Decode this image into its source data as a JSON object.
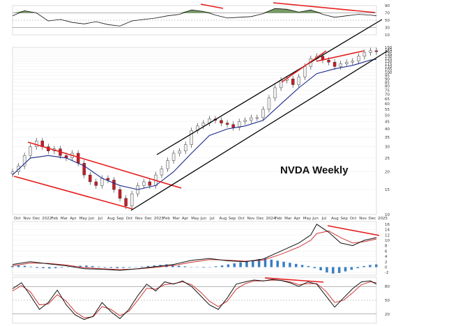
{
  "chart_data": {
    "type": "candlestick",
    "title": "NVDA Weekly",
    "price_scale": "log",
    "x_tick_labels": [
      "Oct",
      "Nov",
      "Dec",
      "2022",
      "Feb",
      "Mar",
      "Apr",
      "May",
      "Jun",
      "Jul",
      "Aug",
      "Sep",
      "Oct",
      "Nov",
      "Dec",
      "2023",
      "Feb",
      "Mar",
      "Apr",
      "May",
      "Jun",
      "Jul",
      "Aug",
      "Sep",
      "Oct",
      "Nov",
      "Dec",
      "2024",
      "Feb",
      "Mar",
      "Apr",
      "May",
      "Jun",
      "Jul",
      "Aug",
      "Sep",
      "Oct",
      "Nov",
      "Dec",
      "2025"
    ],
    "price_tick_labels": [
      "10",
      "15",
      "20",
      "25",
      "30",
      "35",
      "40",
      "45",
      "50",
      "55",
      "60",
      "65",
      "70",
      "75",
      "80",
      "85",
      "90",
      "95",
      "100",
      "105",
      "110",
      "115",
      "120",
      "125",
      "130",
      "135",
      "140",
      "145",
      "150"
    ],
    "rsi_tick_labels": [
      "90",
      "70",
      "50",
      "30",
      "10"
    ],
    "macd_tick_labels": [
      "16",
      "14",
      "12",
      "10",
      "8",
      "6",
      "4",
      "2",
      "0",
      "-2"
    ],
    "stoch_tick_labels": [
      "80",
      "50",
      "20"
    ],
    "price_series": [
      {
        "x": 0,
        "c": 20
      },
      {
        "x": 2,
        "c": 22
      },
      {
        "x": 4,
        "c": 26
      },
      {
        "x": 6,
        "c": 30
      },
      {
        "x": 8,
        "c": 33
      },
      {
        "x": 10,
        "c": 30
      },
      {
        "x": 12,
        "c": 28
      },
      {
        "x": 14,
        "c": 29
      },
      {
        "x": 16,
        "c": 26
      },
      {
        "x": 18,
        "c": 25
      },
      {
        "x": 20,
        "c": 27
      },
      {
        "x": 22,
        "c": 23
      },
      {
        "x": 24,
        "c": 19
      },
      {
        "x": 26,
        "c": 17
      },
      {
        "x": 28,
        "c": 16
      },
      {
        "x": 30,
        "c": 18
      },
      {
        "x": 32,
        "c": 17.5
      },
      {
        "x": 34,
        "c": 15
      },
      {
        "x": 36,
        "c": 13
      },
      {
        "x": 38,
        "c": 11.5
      },
      {
        "x": 40,
        "c": 14
      },
      {
        "x": 42,
        "c": 16
      },
      {
        "x": 44,
        "c": 17
      },
      {
        "x": 46,
        "c": 16
      },
      {
        "x": 48,
        "c": 19
      },
      {
        "x": 50,
        "c": 21
      },
      {
        "x": 52,
        "c": 24
      },
      {
        "x": 54,
        "c": 27
      },
      {
        "x": 56,
        "c": 28
      },
      {
        "x": 58,
        "c": 31
      },
      {
        "x": 60,
        "c": 39
      },
      {
        "x": 62,
        "c": 42
      },
      {
        "x": 64,
        "c": 44
      },
      {
        "x": 66,
        "c": 47
      },
      {
        "x": 68,
        "c": 46
      },
      {
        "x": 70,
        "c": 44
      },
      {
        "x": 72,
        "c": 43
      },
      {
        "x": 74,
        "c": 41
      },
      {
        "x": 76,
        "c": 45
      },
      {
        "x": 78,
        "c": 46
      },
      {
        "x": 80,
        "c": 48
      },
      {
        "x": 82,
        "c": 48
      },
      {
        "x": 84,
        "c": 55
      },
      {
        "x": 86,
        "c": 66
      },
      {
        "x": 88,
        "c": 78
      },
      {
        "x": 90,
        "c": 88
      },
      {
        "x": 92,
        "c": 90
      },
      {
        "x": 94,
        "c": 82
      },
      {
        "x": 96,
        "c": 93
      },
      {
        "x": 98,
        "c": 110
      },
      {
        "x": 100,
        "c": 125
      },
      {
        "x": 102,
        "c": 130
      },
      {
        "x": 104,
        "c": 122
      },
      {
        "x": 106,
        "c": 118
      },
      {
        "x": 108,
        "c": 110
      },
      {
        "x": 110,
        "c": 115
      },
      {
        "x": 112,
        "c": 118
      },
      {
        "x": 114,
        "c": 120
      },
      {
        "x": 116,
        "c": 130
      },
      {
        "x": 118,
        "c": 138
      },
      {
        "x": 120,
        "c": 142
      },
      {
        "x": 122,
        "c": 140
      }
    ],
    "moving_average": [
      {
        "x": 0,
        "c": 19
      },
      {
        "x": 6,
        "c": 25
      },
      {
        "x": 12,
        "c": 26
      },
      {
        "x": 18,
        "c": 25
      },
      {
        "x": 24,
        "c": 22
      },
      {
        "x": 30,
        "c": 18
      },
      {
        "x": 36,
        "c": 16
      },
      {
        "x": 42,
        "c": 15
      },
      {
        "x": 48,
        "c": 16
      },
      {
        "x": 54,
        "c": 20
      },
      {
        "x": 60,
        "c": 27
      },
      {
        "x": 66,
        "c": 36
      },
      {
        "x": 72,
        "c": 40
      },
      {
        "x": 78,
        "c": 42
      },
      {
        "x": 84,
        "c": 46
      },
      {
        "x": 90,
        "c": 60
      },
      {
        "x": 96,
        "c": 78
      },
      {
        "x": 102,
        "c": 98
      },
      {
        "x": 108,
        "c": 106
      },
      {
        "x": 114,
        "c": 112
      },
      {
        "x": 120,
        "c": 122
      },
      {
        "x": 122,
        "c": 124
      }
    ],
    "rsi_series": [
      {
        "x": 0,
        "v": 62
      },
      {
        "x": 4,
        "v": 76
      },
      {
        "x": 8,
        "v": 70
      },
      {
        "x": 12,
        "v": 48
      },
      {
        "x": 16,
        "v": 52
      },
      {
        "x": 20,
        "v": 44
      },
      {
        "x": 24,
        "v": 40
      },
      {
        "x": 28,
        "v": 46
      },
      {
        "x": 32,
        "v": 38
      },
      {
        "x": 36,
        "v": 34
      },
      {
        "x": 40,
        "v": 48
      },
      {
        "x": 44,
        "v": 52
      },
      {
        "x": 48,
        "v": 56
      },
      {
        "x": 52,
        "v": 62
      },
      {
        "x": 56,
        "v": 66
      },
      {
        "x": 60,
        "v": 78
      },
      {
        "x": 64,
        "v": 74
      },
      {
        "x": 68,
        "v": 64
      },
      {
        "x": 72,
        "v": 56
      },
      {
        "x": 76,
        "v": 58
      },
      {
        "x": 80,
        "v": 60
      },
      {
        "x": 84,
        "v": 68
      },
      {
        "x": 88,
        "v": 82
      },
      {
        "x": 92,
        "v": 80
      },
      {
        "x": 96,
        "v": 72
      },
      {
        "x": 100,
        "v": 78
      },
      {
        "x": 104,
        "v": 66
      },
      {
        "x": 108,
        "v": 58
      },
      {
        "x": 112,
        "v": 62
      },
      {
        "x": 116,
        "v": 66
      },
      {
        "x": 120,
        "v": 64
      },
      {
        "x": 122,
        "v": 62
      }
    ],
    "macd_series": [
      {
        "x": 0,
        "v": 1
      },
      {
        "x": 6,
        "v": 2
      },
      {
        "x": 12,
        "v": 1.2
      },
      {
        "x": 18,
        "v": 0.5
      },
      {
        "x": 24,
        "v": -0.6
      },
      {
        "x": 30,
        "v": -0.8
      },
      {
        "x": 36,
        "v": -1.2
      },
      {
        "x": 42,
        "v": -0.6
      },
      {
        "x": 48,
        "v": 0.2
      },
      {
        "x": 54,
        "v": 1
      },
      {
        "x": 60,
        "v": 2.5
      },
      {
        "x": 66,
        "v": 3.2
      },
      {
        "x": 72,
        "v": 2.4
      },
      {
        "x": 78,
        "v": 2
      },
      {
        "x": 84,
        "v": 3
      },
      {
        "x": 90,
        "v": 6
      },
      {
        "x": 96,
        "v": 9
      },
      {
        "x": 100,
        "v": 12
      },
      {
        "x": 102,
        "v": 16
      },
      {
        "x": 106,
        "v": 13
      },
      {
        "x": 110,
        "v": 9
      },
      {
        "x": 114,
        "v": 8
      },
      {
        "x": 118,
        "v": 10
      },
      {
        "x": 122,
        "v": 11
      }
    ],
    "macd_signal": [
      {
        "x": 0,
        "v": 0.5
      },
      {
        "x": 6,
        "v": 1.5
      },
      {
        "x": 12,
        "v": 1.4
      },
      {
        "x": 18,
        "v": 0.8
      },
      {
        "x": 24,
        "v": -0.2
      },
      {
        "x": 30,
        "v": -0.6
      },
      {
        "x": 36,
        "v": -0.9
      },
      {
        "x": 42,
        "v": -0.7
      },
      {
        "x": 48,
        "v": -0.1
      },
      {
        "x": 54,
        "v": 0.6
      },
      {
        "x": 60,
        "v": 1.8
      },
      {
        "x": 66,
        "v": 2.8
      },
      {
        "x": 72,
        "v": 2.6
      },
      {
        "x": 78,
        "v": 2.2
      },
      {
        "x": 84,
        "v": 2.6
      },
      {
        "x": 90,
        "v": 4.8
      },
      {
        "x": 96,
        "v": 7.5
      },
      {
        "x": 100,
        "v": 10
      },
      {
        "x": 102,
        "v": 12.5
      },
      {
        "x": 106,
        "v": 13.5
      },
      {
        "x": 110,
        "v": 11
      },
      {
        "x": 114,
        "v": 9
      },
      {
        "x": 118,
        "v": 9.5
      },
      {
        "x": 122,
        "v": 10.5
      }
    ],
    "macd_histogram": [
      0.4,
      0.6,
      0.5,
      0.2,
      -0.3,
      -0.4,
      -0.5,
      -0.4,
      -0.2,
      0.1,
      0.3,
      0.5,
      0.6,
      0.4,
      0.2,
      -0.2,
      -0.3,
      -0.4,
      -0.3,
      -0.2,
      0.1,
      0.2,
      0.4,
      0.6,
      0.8,
      1.0,
      0.8,
      0.5,
      0.3,
      0.1,
      -0.1,
      -0.2,
      0.1,
      0.3,
      0.6,
      1.0,
      1.4,
      1.8,
      2.2,
      2.6,
      3.0,
      3.2,
      2.8,
      2.4,
      2.0,
      1.6,
      1.2,
      0.8,
      0.4,
      -0.4,
      -1.2,
      -2.0,
      -2.4,
      -2.2,
      -1.6,
      -1.0,
      -0.4,
      0.4,
      0.8,
      1.0
    ],
    "stoch_k": [
      {
        "x": 0,
        "v": 75
      },
      {
        "x": 3,
        "v": 88
      },
      {
        "x": 6,
        "v": 60
      },
      {
        "x": 9,
        "v": 30
      },
      {
        "x": 12,
        "v": 45
      },
      {
        "x": 15,
        "v": 72
      },
      {
        "x": 18,
        "v": 40
      },
      {
        "x": 21,
        "v": 18
      },
      {
        "x": 24,
        "v": 8
      },
      {
        "x": 27,
        "v": 15
      },
      {
        "x": 30,
        "v": 45
      },
      {
        "x": 33,
        "v": 25
      },
      {
        "x": 36,
        "v": 10
      },
      {
        "x": 39,
        "v": 30
      },
      {
        "x": 42,
        "v": 60
      },
      {
        "x": 45,
        "v": 85
      },
      {
        "x": 48,
        "v": 70
      },
      {
        "x": 51,
        "v": 90
      },
      {
        "x": 54,
        "v": 85
      },
      {
        "x": 57,
        "v": 92
      },
      {
        "x": 60,
        "v": 80
      },
      {
        "x": 63,
        "v": 60
      },
      {
        "x": 66,
        "v": 40
      },
      {
        "x": 69,
        "v": 30
      },
      {
        "x": 72,
        "v": 55
      },
      {
        "x": 75,
        "v": 85
      },
      {
        "x": 78,
        "v": 90
      },
      {
        "x": 81,
        "v": 94
      },
      {
        "x": 84,
        "v": 92
      },
      {
        "x": 87,
        "v": 95
      },
      {
        "x": 90,
        "v": 93
      },
      {
        "x": 93,
        "v": 88
      },
      {
        "x": 96,
        "v": 80
      },
      {
        "x": 99,
        "v": 90
      },
      {
        "x": 102,
        "v": 85
      },
      {
        "x": 105,
        "v": 60
      },
      {
        "x": 108,
        "v": 35
      },
      {
        "x": 111,
        "v": 55
      },
      {
        "x": 114,
        "v": 75
      },
      {
        "x": 117,
        "v": 90
      },
      {
        "x": 120,
        "v": 92
      },
      {
        "x": 122,
        "v": 85
      }
    ],
    "stoch_d": [
      {
        "x": 0,
        "v": 70
      },
      {
        "x": 3,
        "v": 82
      },
      {
        "x": 6,
        "v": 68
      },
      {
        "x": 9,
        "v": 40
      },
      {
        "x": 12,
        "v": 42
      },
      {
        "x": 15,
        "v": 62
      },
      {
        "x": 18,
        "v": 48
      },
      {
        "x": 21,
        "v": 25
      },
      {
        "x": 24,
        "v": 12
      },
      {
        "x": 27,
        "v": 14
      },
      {
        "x": 30,
        "v": 36
      },
      {
        "x": 33,
        "v": 30
      },
      {
        "x": 36,
        "v": 16
      },
      {
        "x": 39,
        "v": 26
      },
      {
        "x": 42,
        "v": 50
      },
      {
        "x": 45,
        "v": 76
      },
      {
        "x": 48,
        "v": 74
      },
      {
        "x": 51,
        "v": 84
      },
      {
        "x": 54,
        "v": 86
      },
      {
        "x": 57,
        "v": 90
      },
      {
        "x": 60,
        "v": 84
      },
      {
        "x": 63,
        "v": 68
      },
      {
        "x": 66,
        "v": 48
      },
      {
        "x": 69,
        "v": 36
      },
      {
        "x": 72,
        "v": 48
      },
      {
        "x": 75,
        "v": 74
      },
      {
        "x": 78,
        "v": 86
      },
      {
        "x": 81,
        "v": 92
      },
      {
        "x": 84,
        "v": 92
      },
      {
        "x": 87,
        "v": 94
      },
      {
        "x": 90,
        "v": 93
      },
      {
        "x": 93,
        "v": 90
      },
      {
        "x": 96,
        "v": 84
      },
      {
        "x": 99,
        "v": 86
      },
      {
        "x": 102,
        "v": 86
      },
      {
        "x": 105,
        "v": 70
      },
      {
        "x": 108,
        "v": 45
      },
      {
        "x": 111,
        "v": 50
      },
      {
        "x": 114,
        "v": 66
      },
      {
        "x": 117,
        "v": 84
      },
      {
        "x": 120,
        "v": 90
      },
      {
        "x": 122,
        "v": 88
      }
    ],
    "x_domain": [
      0,
      122
    ],
    "price_range": [
      10,
      150
    ],
    "colors": {
      "up": "#f0f0f0",
      "down": "#cc1a24",
      "wick": "#222222",
      "ma": "#1a2a8a",
      "trend": "#e51c1c",
      "channel": "#000000",
      "rsi_fill": "#5e8a4a",
      "macd_line": "#111111",
      "signal_line": "#cc2222",
      "hist": "#3a7ec0",
      "stoch_k": "#111111",
      "stoch_d": "#cc2222",
      "grid": "#dddddd"
    }
  }
}
